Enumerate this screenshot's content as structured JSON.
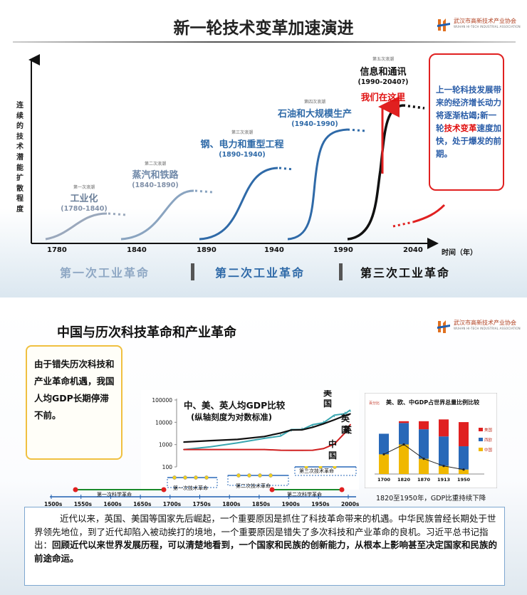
{
  "logo": {
    "name_cn": "武汉市高新技术产业协会",
    "name_en": "WUHAN HI-TECH INDUSTRIAL ASSOCIATION"
  },
  "slide1": {
    "title": "新一轮技术变革加速演进",
    "y_label": "连续的技术潜能扩散程度",
    "x_unit": "时间（年）",
    "x_ticks": [
      "1780",
      "1840",
      "1890",
      "1940",
      "1990",
      "2040"
    ],
    "waves": [
      {
        "small": "第一次浪潮",
        "name": "工业化",
        "years": "(1780-1840)"
      },
      {
        "small": "第二次浪潮",
        "name": "蒸汽和铁路",
        "years": "(1840-1890)"
      },
      {
        "small": "第三次浪潮",
        "name": "钢、电力和重型工程",
        "years": "(1890-1940)"
      },
      {
        "small": "第四次浪潮",
        "name": "石油和大规模生产",
        "years": "(1940-1990)"
      },
      {
        "small": "第五次浪潮",
        "name": "信息和通讯",
        "years": "(1990-2040?)"
      }
    ],
    "here_label": "我们在这里",
    "eras": [
      "第一次工业革命",
      "第二次工业革命",
      "第三次工业革命"
    ],
    "callout": {
      "part1": "上一轮科技发展带来的经济增长动力将逐渐枯竭;新一轮",
      "part2": "技术变革",
      "part3": "速度加快，处于爆发的前期。"
    }
  },
  "slide2": {
    "title": "中国与历次科技革命和产业革命",
    "side_note": "由于错失历次科技和产业革命机遇，我国人均GDP长期停滞不前。",
    "gdp_chart_title": "中、美、英人均GDP比较",
    "gdp_chart_subtitle": "(纵轴刻度为对数标准)",
    "series_labels": {
      "usa": "美国",
      "uk": "英国",
      "china": "中国"
    },
    "gdp_y_ticks": [
      "100000",
      "10000",
      "1000",
      "100"
    ],
    "timeline": {
      "years": [
        "1500s",
        "1550s",
        "1600s",
        "1650s",
        "1700s",
        "1750s",
        "1800s",
        "1850s",
        "1900s",
        "1950s",
        "2000s"
      ],
      "labels": [
        "第一次科学革命",
        "第一次技术革命",
        "第二次技术革命",
        "第二次科学革命",
        "第三次技术革命"
      ]
    },
    "share_chart": {
      "title": "美、欧、中GDP占世界总量比例比较",
      "y_unit": "百分比",
      "categories": [
        "1700",
        "1820",
        "1870",
        "1913",
        "1950"
      ],
      "legend": [
        "美国",
        "西欧",
        "中国"
      ],
      "caption": "1820至1950年，GDP比重持续下降"
    },
    "body": {
      "p1": "近代以来，英国、美国等国家先后崛起，一个重要原因是抓住了科技革命带来的机遇。中华民族曾经长期处于世界领先地位，到了近代却陷入被动挨打的境地，一个重要原因是错失了多次科技和产业革命的良机。习近平总书记指出：",
      "bold": "回顾近代以来世界发展历程，可以清楚地看到，一个国家和民族的创新能力，从根本上影响甚至决定国家和民族的前途命运。"
    }
  },
  "chart_data": [
    {
      "type": "line",
      "title": "中、美、英人均GDP比较",
      "subtitle": "(纵轴刻度为对数标准)",
      "ylabel": "",
      "y_scale": "log",
      "ylim": [
        100,
        100000
      ],
      "x": [
        1700,
        1750,
        1800,
        1850,
        1880,
        1900,
        1920,
        1940,
        1960,
        1980,
        2000,
        2010
      ],
      "series": [
        {
          "name": "美国",
          "color": "#3aa6b0",
          "values": [
            600,
            800,
            1200,
            1900,
            2800,
            4100,
            5500,
            6800,
            11000,
            18000,
            28000,
            31000
          ]
        },
        {
          "name": "英国",
          "color": "#111111",
          "values": [
            1300,
            1500,
            1700,
            2300,
            3300,
            4500,
            4600,
            6000,
            8600,
            12900,
            20000,
            24000
          ]
        },
        {
          "name": "中国",
          "color": "#d02020",
          "values": [
            600,
            600,
            600,
            600,
            560,
            550,
            550,
            560,
            660,
            1060,
            3400,
            8000
          ]
        }
      ]
    },
    {
      "type": "bar",
      "title": "美、欧、中GDP占世界总量比例比较",
      "ylabel": "百分比",
      "ylim": [
        0,
        70
      ],
      "categories": [
        "1700",
        "1820",
        "1870",
        "1913",
        "1950"
      ],
      "stacked": true,
      "series": [
        {
          "name": "中国",
          "color": "#f0b800",
          "values": [
            22,
            33,
            17,
            9,
            5
          ]
        },
        {
          "name": "西欧",
          "color": "#2868b8",
          "values": [
            23,
            24,
            33,
            33,
            26
          ]
        },
        {
          "name": "美国",
          "color": "#e02020",
          "values": [
            0,
            2,
            9,
            19,
            27
          ]
        }
      ],
      "trend_line": {
        "name": "中国",
        "values": [
          22,
          33,
          17,
          9,
          5
        ]
      }
    }
  ]
}
